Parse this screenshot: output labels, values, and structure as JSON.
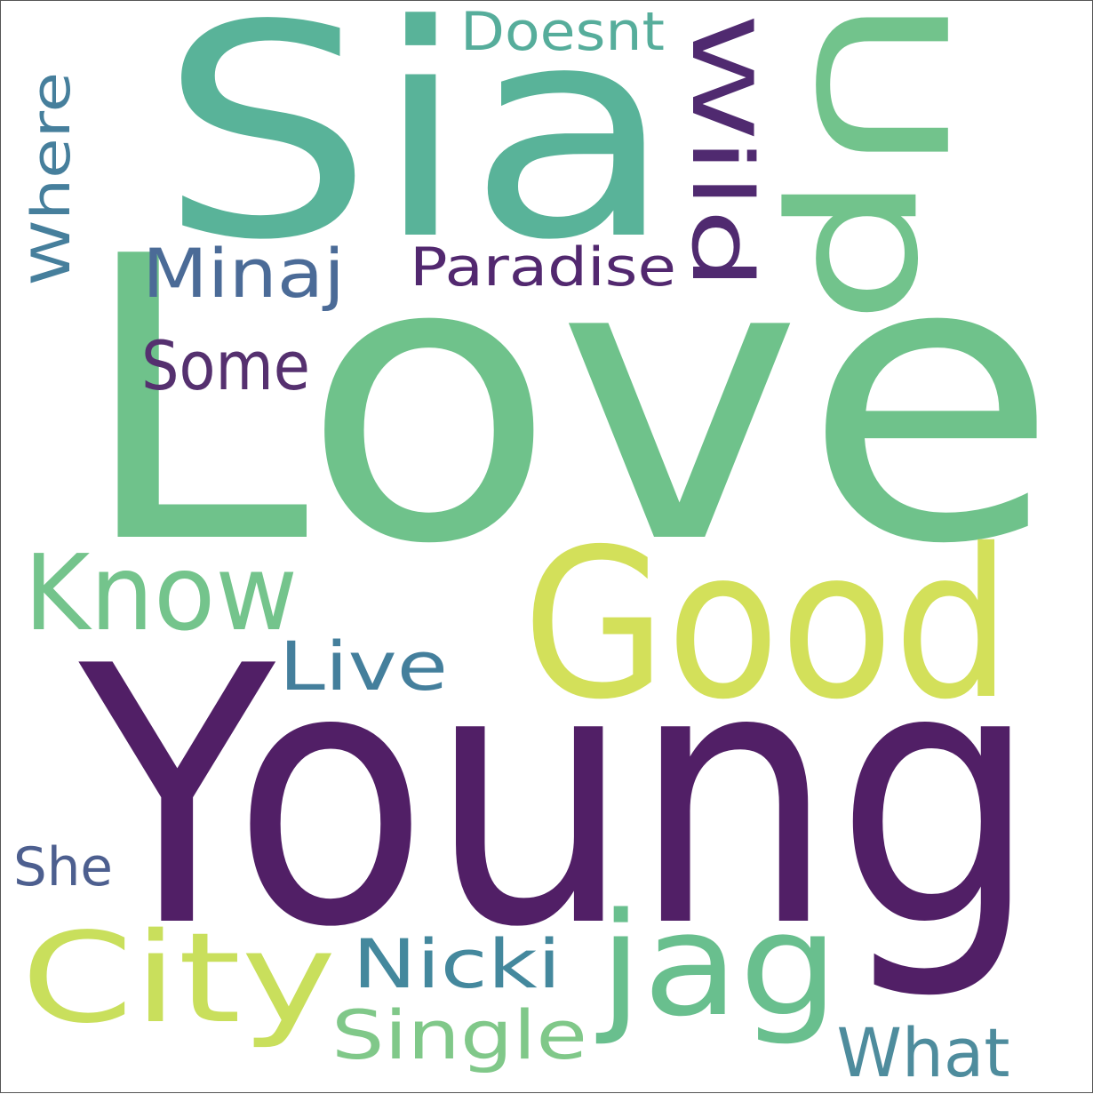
{
  "words": [
    {
      "text": "Love",
      "color": "#6fc28b"
    },
    {
      "text": "Young",
      "color": "#511f66"
    },
    {
      "text": "Sia",
      "color": "#59b399"
    },
    {
      "text": "Good",
      "color": "#d3e05a"
    },
    {
      "text": "Up",
      "color": "#72c38c"
    },
    {
      "text": "Know",
      "color": "#74c48c"
    },
    {
      "text": "City",
      "color": "#c9df5c"
    },
    {
      "text": "jag",
      "color": "#69bf8e"
    },
    {
      "text": "Wild",
      "color": "#502a70"
    },
    {
      "text": "Minaj",
      "color": "#4b6b97"
    },
    {
      "text": "Paradise",
      "color": "#52286f"
    },
    {
      "text": "Some",
      "color": "#55306f"
    },
    {
      "text": "Where",
      "color": "#467f9c"
    },
    {
      "text": "Doesnt",
      "color": "#56ad9b"
    },
    {
      "text": "Live",
      "color": "#447f9c"
    },
    {
      "text": "She",
      "color": "#4d5f8f"
    },
    {
      "text": "Nicki",
      "color": "#44889d"
    },
    {
      "text": "Single",
      "color": "#80c889"
    },
    {
      "text": "What",
      "color": "#4e8c9d"
    }
  ]
}
